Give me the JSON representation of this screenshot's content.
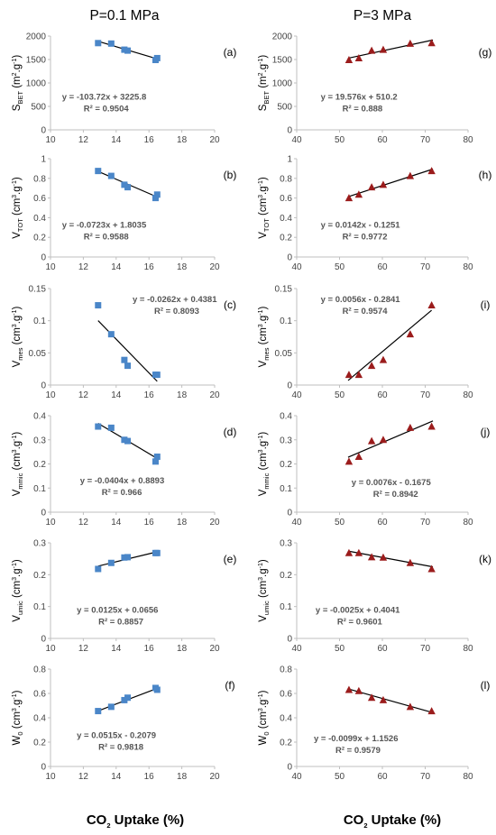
{
  "columns": [
    "P=0.1 MPa",
    "P=3 MPa"
  ],
  "xlabel": {
    "main": "CO",
    "sub": "2",
    "rest": " Uptake (%)"
  },
  "chart_data": [
    {
      "type": "scatter",
      "panel": "(a)",
      "column": 0,
      "ylabel": {
        "main": "S",
        "sub": "BET",
        "rest": " (m",
        "sup": "2",
        ".g": ".g",
        "sup2": "-1",
        "end": ")"
      },
      "x": [
        12.9,
        13.7,
        14.5,
        14.7,
        16.4,
        16.5
      ],
      "y": [
        1850,
        1840,
        1710,
        1690,
        1490,
        1530
      ],
      "xlim": [
        10,
        20
      ],
      "xticks": [
        10,
        12,
        14,
        16,
        18,
        20
      ],
      "ylim": [
        0,
        2000
      ],
      "yticks": [
        0,
        500,
        1000,
        1500,
        2000
      ],
      "trend": {
        "slope": -103.72,
        "intercept": 3225.8,
        "x0": 12.9,
        "x1": 16.6
      },
      "equation": "y = -103.72x + 3225.8",
      "r2": "R² = 0.9504",
      "marker": "square",
      "color": "#4a86c8"
    },
    {
      "type": "scatter",
      "panel": "(b)",
      "column": 0,
      "ylabel": {
        "main": "V",
        "sub": "TOT",
        "rest": " (cm",
        "sup": "3",
        ".g": ".g",
        "sup2": "-1",
        "end": ")"
      },
      "x": [
        12.9,
        13.7,
        14.5,
        14.7,
        16.4,
        16.5
      ],
      "y": [
        0.875,
        0.825,
        0.735,
        0.71,
        0.6,
        0.635
      ],
      "xlim": [
        10,
        20
      ],
      "xticks": [
        10,
        12,
        14,
        16,
        18,
        20
      ],
      "ylim": [
        0,
        1
      ],
      "yticks": [
        0,
        0.2,
        0.4,
        0.6,
        0.8,
        1
      ],
      "trend": {
        "slope": -0.0723,
        "intercept": 1.8035,
        "x0": 12.9,
        "x1": 16.6
      },
      "equation": "y = -0.0723x + 1.8035",
      "r2": "R² = 0.9588",
      "marker": "square",
      "color": "#4a86c8"
    },
    {
      "type": "scatter",
      "panel": "(c)",
      "column": 0,
      "ylabel": {
        "main": "V",
        "sub": "mes",
        "rest": " (cm",
        "sup": "3",
        ".g": ".g",
        "sup2": "-1",
        "end": ")"
      },
      "x": [
        12.9,
        13.7,
        14.5,
        14.7,
        16.4,
        16.5
      ],
      "y": [
        0.124,
        0.079,
        0.039,
        0.03,
        0.016,
        0.016
      ],
      "xlim": [
        10,
        20
      ],
      "xticks": [
        10,
        12,
        14,
        16,
        18,
        20
      ],
      "ylim": [
        0,
        0.15
      ],
      "yticks": [
        0,
        0.05,
        0.1,
        0.15
      ],
      "trend": {
        "slope": -0.0262,
        "intercept": 0.4381,
        "x0": 12.9,
        "x1": 16.5
      },
      "equation": "y = -0.0262x + 0.4381",
      "r2": "R² = 0.8093",
      "marker": "square",
      "color": "#4a86c8"
    },
    {
      "type": "scatter",
      "panel": "(d)",
      "column": 0,
      "ylabel": {
        "main": "V",
        "sub": "mmic",
        "rest": " (cm",
        "sup": "3",
        ".g": ".g",
        "sup2": "-1",
        "end": ")"
      },
      "x": [
        12.9,
        13.7,
        14.5,
        14.7,
        16.4,
        16.5
      ],
      "y": [
        0.355,
        0.35,
        0.3,
        0.295,
        0.21,
        0.23
      ],
      "xlim": [
        10,
        20
      ],
      "xticks": [
        10,
        12,
        14,
        16,
        18,
        20
      ],
      "ylim": [
        0,
        0.4
      ],
      "yticks": [
        0,
        0.1,
        0.2,
        0.3,
        0.4
      ],
      "trend": {
        "slope": -0.0404,
        "intercept": 0.8893,
        "x0": 12.9,
        "x1": 16.6
      },
      "equation": "y = -0.0404x + 0.8893",
      "r2": "R² = 0.966",
      "marker": "square",
      "color": "#4a86c8"
    },
    {
      "type": "scatter",
      "panel": "(e)",
      "column": 0,
      "ylabel": {
        "main": "V",
        "sub": "umic",
        "rest": " (cm",
        "sup": "3",
        ".g": ".g",
        "sup2": "-1",
        "end": ")"
      },
      "x": [
        12.9,
        13.7,
        14.5,
        14.7,
        16.4,
        16.5
      ],
      "y": [
        0.218,
        0.237,
        0.254,
        0.255,
        0.268,
        0.268
      ],
      "xlim": [
        10,
        20
      ],
      "xticks": [
        10,
        12,
        14,
        16,
        18,
        20
      ],
      "ylim": [
        0,
        0.3
      ],
      "yticks": [
        0,
        0.1,
        0.2,
        0.3
      ],
      "trend": {
        "slope": 0.0125,
        "intercept": 0.0656,
        "x0": 12.9,
        "x1": 16.6
      },
      "equation": "y = 0.0125x + 0.0656",
      "r2": "R² = 0.8857",
      "marker": "square",
      "color": "#4a86c8"
    },
    {
      "type": "scatter",
      "panel": "(f)",
      "column": 0,
      "ylabel": {
        "main": "W",
        "sub": "0",
        "rest": " (cm",
        "sup": "3",
        ".g": ".g",
        "sup2": "-1",
        "end": ")"
      },
      "x": [
        12.9,
        13.7,
        14.5,
        14.7,
        16.4,
        16.5
      ],
      "y": [
        0.455,
        0.49,
        0.545,
        0.565,
        0.645,
        0.63
      ],
      "xlim": [
        10,
        20
      ],
      "xticks": [
        10,
        12,
        14,
        16,
        18,
        20
      ],
      "ylim": [
        0,
        0.8
      ],
      "yticks": [
        0,
        0.2,
        0.4,
        0.6,
        0.8
      ],
      "trend": {
        "slope": 0.0515,
        "intercept": -0.2079,
        "x0": 12.9,
        "x1": 16.6
      },
      "equation": "y = 0.0515x - 0.2079",
      "r2": "R² = 0.9818",
      "marker": "square",
      "color": "#4a86c8"
    },
    {
      "type": "scatter",
      "panel": "(g)",
      "column": 1,
      "ylabel": {
        "main": "S",
        "sub": "BET",
        "rest": " (m",
        "sup": "2",
        ".g": ".g",
        "sup2": "-1",
        "end": ")"
      },
      "x": [
        52.2,
        54.5,
        57.5,
        60.2,
        66.5,
        71.5
      ],
      "y": [
        1490,
        1530,
        1690,
        1710,
        1840,
        1850
      ],
      "xlim": [
        40,
        80
      ],
      "xticks": [
        40,
        50,
        60,
        70,
        80
      ],
      "ylim": [
        0,
        2000
      ],
      "yticks": [
        0,
        500,
        1000,
        1500,
        2000
      ],
      "trend": {
        "slope": 19.576,
        "intercept": 510.2,
        "x0": 52,
        "x1": 71.8
      },
      "equation": "y = 19.576x + 510.2",
      "r2": "R² = 0.888",
      "marker": "triangle",
      "color": "#9b1c1c"
    },
    {
      "type": "scatter",
      "panel": "(h)",
      "column": 1,
      "ylabel": {
        "main": "V",
        "sub": "TOT",
        "rest": " (cm",
        "sup": "3",
        ".g": ".g",
        "sup2": "-1",
        "end": ")"
      },
      "x": [
        52.2,
        54.5,
        57.5,
        60.2,
        66.5,
        71.5
      ],
      "y": [
        0.6,
        0.635,
        0.71,
        0.735,
        0.825,
        0.875
      ],
      "xlim": [
        40,
        80
      ],
      "xticks": [
        40,
        50,
        60,
        70,
        80
      ],
      "ylim": [
        0,
        1
      ],
      "yticks": [
        0,
        0.2,
        0.4,
        0.6,
        0.8,
        1
      ],
      "trend": {
        "slope": 0.0142,
        "intercept": -0.1251,
        "x0": 52,
        "x1": 71.8
      },
      "equation": "y = 0.0142x - 0.1251",
      "r2": "R² = 0.9772",
      "marker": "triangle",
      "color": "#9b1c1c"
    },
    {
      "type": "scatter",
      "panel": "(i)",
      "column": 1,
      "ylabel": {
        "main": "V",
        "sub": "mes",
        "rest": " (cm",
        "sup": "3",
        ".g": ".g",
        "sup2": "-1",
        "end": ")"
      },
      "x": [
        52.2,
        54.5,
        57.5,
        60.2,
        66.5,
        71.5
      ],
      "y": [
        0.016,
        0.016,
        0.03,
        0.039,
        0.079,
        0.124
      ],
      "xlim": [
        40,
        80
      ],
      "xticks": [
        40,
        50,
        60,
        70,
        80
      ],
      "ylim": [
        0,
        0.15
      ],
      "yticks": [
        0,
        0.05,
        0.1,
        0.15
      ],
      "trend": {
        "slope": 0.0056,
        "intercept": -0.2841,
        "x0": 52,
        "x1": 71.5
      },
      "equation": "y = 0.0056x - 0.2841",
      "r2": "R² = 0.9574",
      "marker": "triangle",
      "color": "#9b1c1c"
    },
    {
      "type": "scatter",
      "panel": "(j)",
      "column": 1,
      "ylabel": {
        "main": "V",
        "sub": "mmic",
        "rest": " (cm",
        "sup": "3",
        ".g": ".g",
        "sup2": "-1",
        "end": ")"
      },
      "x": [
        52.2,
        54.5,
        57.5,
        60.2,
        66.5,
        71.5
      ],
      "y": [
        0.21,
        0.23,
        0.295,
        0.3,
        0.35,
        0.355
      ],
      "xlim": [
        40,
        80
      ],
      "xticks": [
        40,
        50,
        60,
        70,
        80
      ],
      "ylim": [
        0,
        0.4
      ],
      "yticks": [
        0,
        0.1,
        0.2,
        0.3,
        0.4
      ],
      "trend": {
        "slope": 0.0076,
        "intercept": -0.1675,
        "x0": 52,
        "x1": 71.8
      },
      "equation": "y = 0.0076x - 0.1675",
      "r2": "R² = 0.8942",
      "marker": "triangle",
      "color": "#9b1c1c"
    },
    {
      "type": "scatter",
      "panel": "(k)",
      "column": 1,
      "ylabel": {
        "main": "V",
        "sub": "umic",
        "rest": " (cm",
        "sup": "3",
        ".g": ".g",
        "sup2": "-1",
        "end": ")"
      },
      "x": [
        52.2,
        54.5,
        57.5,
        60.2,
        66.5,
        71.5
      ],
      "y": [
        0.268,
        0.268,
        0.255,
        0.254,
        0.237,
        0.218
      ],
      "xlim": [
        40,
        80
      ],
      "xticks": [
        40,
        50,
        60,
        70,
        80
      ],
      "ylim": [
        0,
        0.3
      ],
      "yticks": [
        0,
        0.1,
        0.2,
        0.3
      ],
      "trend": {
        "slope": -0.0025,
        "intercept": 0.4041,
        "x0": 52,
        "x1": 71.8
      },
      "equation": "y = -0.0025x + 0.4041",
      "r2": "R² = 0.9601",
      "marker": "triangle",
      "color": "#9b1c1c"
    },
    {
      "type": "scatter",
      "panel": "(l)",
      "column": 1,
      "ylabel": {
        "main": "W",
        "sub": "0",
        "rest": " (cm",
        "sup": "3",
        ".g": ".g",
        "sup2": "-1",
        "end": ")"
      },
      "x": [
        52.2,
        54.5,
        57.5,
        60.2,
        66.5,
        71.5
      ],
      "y": [
        0.63,
        0.62,
        0.565,
        0.545,
        0.49,
        0.455
      ],
      "xlim": [
        40,
        80
      ],
      "xticks": [
        40,
        50,
        60,
        70,
        80
      ],
      "ylim": [
        0,
        0.8
      ],
      "yticks": [
        0,
        0.2,
        0.4,
        0.6,
        0.8
      ],
      "trend": {
        "slope": -0.0099,
        "intercept": 1.1526,
        "x0": 52,
        "x1": 71.8
      },
      "equation": "y = -0.0099x + 1.1526",
      "r2": "R² = 0.9579",
      "marker": "triangle",
      "color": "#9b1c1c"
    }
  ]
}
